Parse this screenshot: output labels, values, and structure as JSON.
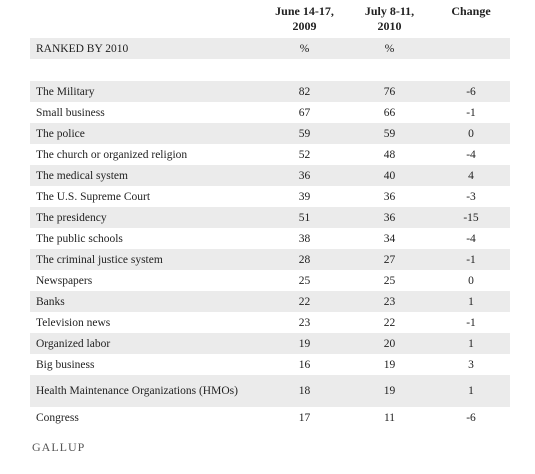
{
  "header": {
    "columns": [
      "June 14-17,\n2009",
      "July 8-11,\n2010",
      "Change"
    ]
  },
  "subheader": {
    "label": "RANKED BY 2010",
    "units": [
      "%",
      "%"
    ]
  },
  "table": {
    "rows": [
      [
        "The Military",
        82,
        76,
        -6
      ],
      [
        "Small business",
        67,
        66,
        -1
      ],
      [
        "The police",
        59,
        59,
        0
      ],
      [
        "The church or organized religion",
        52,
        48,
        -4
      ],
      [
        "The medical system",
        36,
        40,
        4
      ],
      [
        "The U.S. Supreme Court",
        39,
        36,
        -3
      ],
      [
        "The presidency",
        51,
        36,
        -15
      ],
      [
        "The public schools",
        38,
        34,
        -4
      ],
      [
        "The criminal justice system",
        28,
        27,
        -1
      ],
      [
        "Newspapers",
        25,
        25,
        0
      ],
      [
        "Banks",
        22,
        23,
        1
      ],
      [
        "Television news",
        23,
        22,
        -1
      ],
      [
        "Organized labor",
        19,
        20,
        1
      ],
      [
        "Big business",
        16,
        19,
        3
      ],
      [
        "Health Maintenance Organizations (HMOs)",
        18,
        19,
        1
      ],
      [
        "Congress",
        17,
        11,
        -6
      ]
    ]
  },
  "footer": {
    "logo": "GALLUP"
  }
}
